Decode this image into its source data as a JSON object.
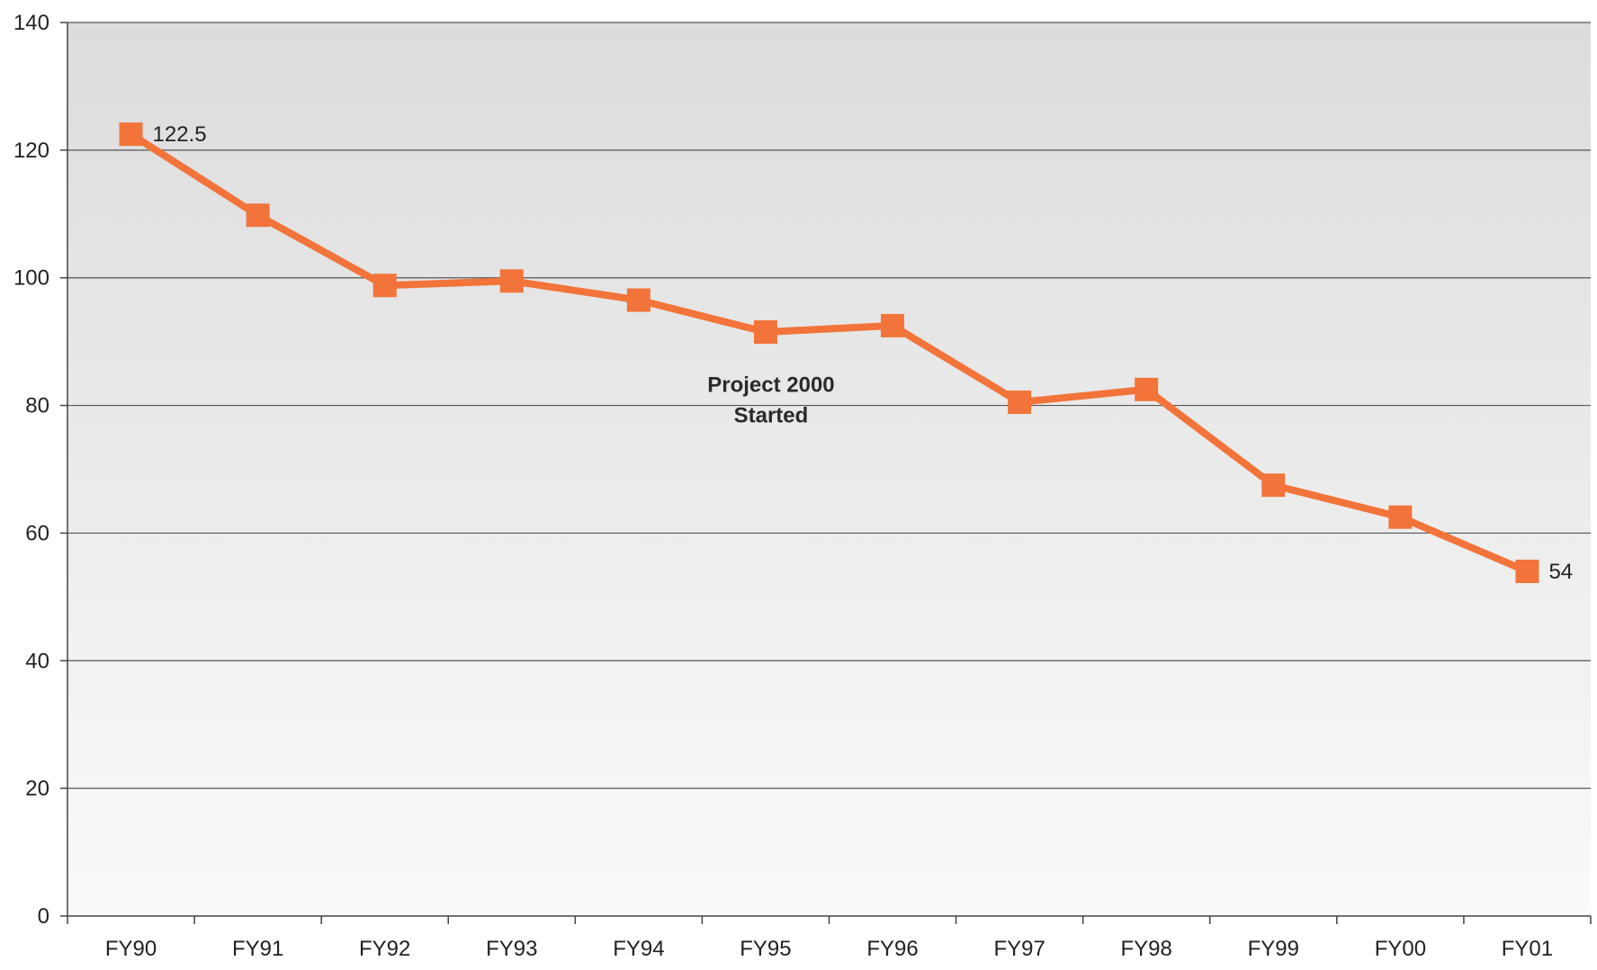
{
  "chart_data": {
    "type": "line",
    "categories": [
      "FY90",
      "FY91",
      "FY92",
      "FY93",
      "FY94",
      "FY95",
      "FY96",
      "FY97",
      "FY98",
      "FY99",
      "FY00",
      "FY01"
    ],
    "series": [
      {
        "values": [
          122.5,
          109.8,
          98.8,
          99.5,
          96.5,
          91.5,
          92.5,
          80.5,
          82.5,
          67.5,
          62.5,
          54
        ]
      }
    ],
    "data_labels": [
      {
        "category": "FY90",
        "text": "122.5"
      },
      {
        "category": "FY01",
        "text": "54"
      }
    ],
    "annotations": [
      {
        "category": "FY95",
        "y": 79,
        "lines": [
          "Project 2000",
          "Started"
        ]
      }
    ],
    "ylim": [
      0,
      140
    ],
    "yticks": [
      0,
      20,
      40,
      60,
      80,
      100,
      120,
      140
    ],
    "title": "",
    "xlabel": "",
    "ylabel": "",
    "grid": "horizontal",
    "legend": "none",
    "colors": {
      "series": "#f2743a",
      "marker": "#f2743a",
      "gridline": "#555555",
      "axis": "#444444",
      "background_top": "#dcdcdc",
      "background_bottom": "#fafafa"
    }
  }
}
